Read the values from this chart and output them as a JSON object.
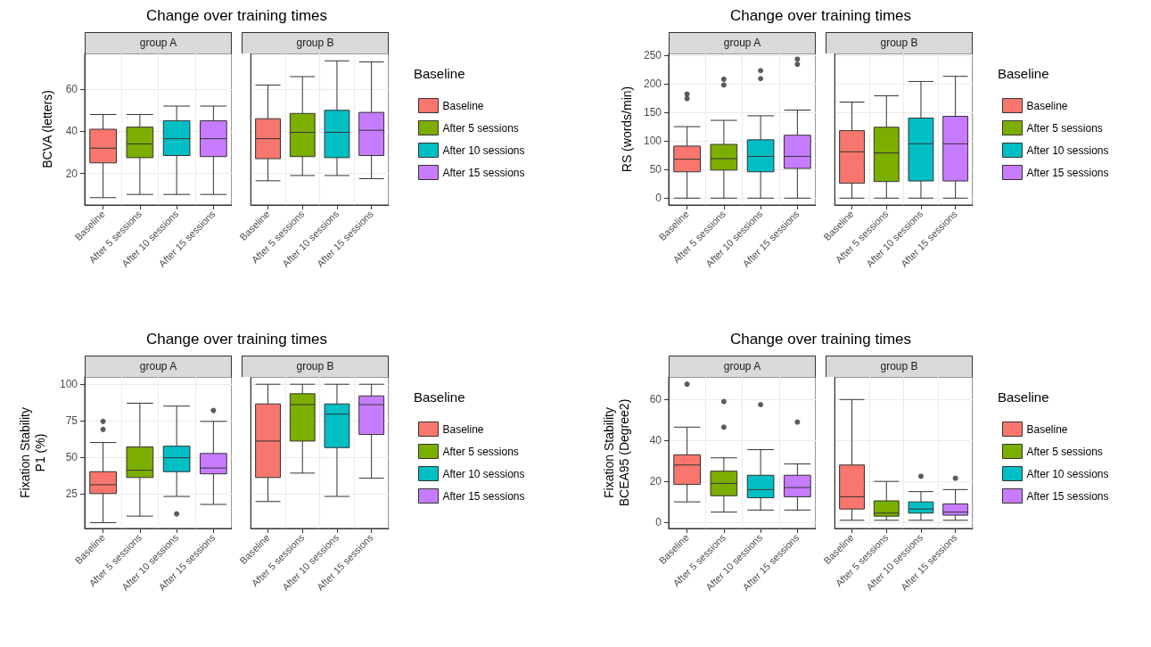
{
  "chart_data": [
    {
      "type": "box",
      "title": "Change over training times",
      "subtitle": "group A",
      "ylabel": "BCVA (letters)",
      "categories": [
        "Baseline",
        "After 5 sessions",
        "After 10 sessions",
        "After 15 sessions"
      ],
      "ylim": [
        5,
        77
      ],
      "yticks": [
        20,
        40,
        60
      ],
      "grid": true,
      "legend": false,
      "series": [
        {
          "color": "#f8766d",
          "boxes": [
            {
              "low": 8.5,
              "q1": 25,
              "median": 32,
              "q3": 41,
              "high": 48
            },
            null,
            null,
            null
          ]
        },
        {
          "color": "#7cae00",
          "boxes": [
            null,
            {
              "low": 10,
              "q1": 27.5,
              "median": 34,
              "q3": 42,
              "high": 48
            },
            null,
            null
          ]
        },
        {
          "color": "#00bfc4",
          "boxes": [
            null,
            null,
            {
              "low": 10,
              "q1": 28.5,
              "median": 36.5,
              "q3": 45,
              "high": 52
            },
            null
          ]
        },
        {
          "color": "#c77cff",
          "boxes": [
            null,
            null,
            null,
            {
              "low": 10,
              "q1": 28,
              "median": 36.5,
              "q3": 45,
              "high": 52
            }
          ]
        }
      ]
    },
    {
      "type": "box",
      "subtitle": "group B",
      "categories": [
        "Baseline",
        "After 5 sessions",
        "After 10 sessions",
        "After 15 sessions"
      ],
      "ylim": [
        5,
        77
      ],
      "yticks": [
        20,
        40,
        60
      ],
      "grid": true,
      "tick_labels": "x",
      "legend": "right",
      "legend_title": "Baseline",
      "series": [
        {
          "name": "Baseline",
          "color": "#f8766d",
          "boxes": [
            {
              "low": 16.5,
              "q1": 27,
              "median": 36.5,
              "q3": 46,
              "high": 62
            },
            null,
            null,
            null
          ]
        },
        {
          "name": "After 5 sessions",
          "color": "#7cae00",
          "boxes": [
            null,
            {
              "low": 19,
              "q1": 28,
              "median": 39.5,
              "q3": 48.5,
              "high": 66
            },
            null,
            null
          ]
        },
        {
          "name": "After 10 sessions",
          "color": "#00bfc4",
          "boxes": [
            null,
            null,
            {
              "low": 19,
              "q1": 27.5,
              "median": 39.5,
              "q3": 50,
              "high": 73.5
            },
            null
          ]
        },
        {
          "name": "After 15 sessions",
          "color": "#c77cff",
          "boxes": [
            null,
            null,
            null,
            {
              "low": 17.5,
              "q1": 28.5,
              "median": 40.5,
              "q3": 49,
              "high": 73
            }
          ]
        }
      ]
    },
    {
      "type": "box",
      "title": "Change over training times",
      "subtitle": "group A",
      "ylabel": "RS (words/min)",
      "categories": [
        "Baseline",
        "After 5 sessions",
        "After 10 sessions",
        "After 15 sessions"
      ],
      "ylim": [
        -12,
        253
      ],
      "yticks": [
        0,
        50,
        100,
        150,
        200,
        250
      ],
      "grid": true,
      "legend": false,
      "series": [
        {
          "color": "#f8766d",
          "boxes": [
            {
              "low": 0,
              "q1": 46,
              "median": 68,
              "q3": 91,
              "high": 125,
              "outliers": [
                174,
                182
              ]
            },
            null,
            null,
            null
          ]
        },
        {
          "color": "#7cae00",
          "boxes": [
            null,
            {
              "low": 0,
              "q1": 49,
              "median": 69,
              "q3": 94,
              "high": 136,
              "outliers": [
                198,
                208
              ]
            },
            null,
            null
          ]
        },
        {
          "color": "#00bfc4",
          "boxes": [
            null,
            null,
            {
              "low": 0,
              "q1": 46,
              "median": 73,
              "q3": 102,
              "high": 144,
              "outliers": [
                209,
                223
              ]
            },
            null
          ]
        },
        {
          "color": "#c77cff",
          "boxes": [
            null,
            null,
            null,
            {
              "low": 0,
              "q1": 52,
              "median": 73,
              "q3": 110,
              "high": 154,
              "outliers": [
                234,
                243
              ]
            }
          ]
        }
      ]
    },
    {
      "type": "box",
      "subtitle": "group B",
      "categories": [
        "Baseline",
        "After 5 sessions",
        "After 10 sessions",
        "After 15 sessions"
      ],
      "ylim": [
        -12,
        253
      ],
      "yticks": [
        0,
        50,
        100,
        150,
        200,
        250
      ],
      "grid": true,
      "tick_labels": "x",
      "legend": "right",
      "legend_title": "Baseline",
      "series": [
        {
          "name": "Baseline",
          "color": "#f8766d",
          "boxes": [
            {
              "low": 0,
              "q1": 26,
              "median": 81,
              "q3": 118,
              "high": 168
            },
            null,
            null,
            null
          ]
        },
        {
          "name": "After 5 sessions",
          "color": "#7cae00",
          "boxes": [
            null,
            {
              "low": 0,
              "q1": 29,
              "median": 79,
              "q3": 124,
              "high": 179
            },
            null,
            null
          ]
        },
        {
          "name": "After 10 sessions",
          "color": "#00bfc4",
          "boxes": [
            null,
            null,
            {
              "low": 0,
              "q1": 30,
              "median": 95,
              "q3": 140,
              "high": 204
            },
            null
          ]
        },
        {
          "name": "After 15 sessions",
          "color": "#c77cff",
          "boxes": [
            null,
            null,
            null,
            {
              "low": 0,
              "q1": 30,
              "median": 95,
              "q3": 143,
              "high": 213
            }
          ]
        }
      ]
    },
    {
      "type": "box",
      "title": "Change over training times",
      "subtitle": "group A",
      "ylabel": "Fixation Stability\nP1 (%)",
      "categories": [
        "Baseline",
        "After 5 sessions",
        "After 10 sessions",
        "After 15 sessions"
      ],
      "ylim": [
        1,
        105
      ],
      "yticks": [
        25,
        50,
        75,
        100
      ],
      "grid": true,
      "legend": false,
      "series": [
        {
          "color": "#f8766d",
          "boxes": [
            {
              "low": 5,
              "q1": 25,
              "median": 31,
              "q3": 40,
              "high": 60,
              "outliers": [
                69,
                74.5
              ]
            },
            null,
            null,
            null
          ]
        },
        {
          "color": "#7cae00",
          "boxes": [
            null,
            {
              "low": 9.5,
              "q1": 36,
              "median": 41,
              "q3": 57,
              "high": 87
            },
            null,
            null
          ]
        },
        {
          "color": "#00bfc4",
          "boxes": [
            null,
            null,
            {
              "low": 23,
              "q1": 40,
              "median": 49.5,
              "q3": 57.5,
              "high": 85,
              "outliers": [
                11
              ]
            },
            null
          ]
        },
        {
          "color": "#c77cff",
          "boxes": [
            null,
            null,
            null,
            {
              "low": 17.5,
              "q1": 38.5,
              "median": 42.5,
              "q3": 52.5,
              "high": 74.5,
              "outliers": [
                82
              ]
            }
          ]
        }
      ]
    },
    {
      "type": "box",
      "subtitle": "group B",
      "categories": [
        "Baseline",
        "After 5 sessions",
        "After 10 sessions",
        "After 15 sessions"
      ],
      "ylim": [
        1,
        105
      ],
      "yticks": [
        25,
        50,
        75,
        100
      ],
      "grid": true,
      "tick_labels": "x",
      "legend": "right",
      "legend_title": "Baseline",
      "series": [
        {
          "name": "Baseline",
          "color": "#f8766d",
          "boxes": [
            {
              "low": 19.5,
              "q1": 36,
              "median": 61,
              "q3": 86.5,
              "high": 100
            },
            null,
            null,
            null
          ]
        },
        {
          "name": "After 5 sessions",
          "color": "#7cae00",
          "boxes": [
            null,
            {
              "low": 39,
              "q1": 61,
              "median": 86,
              "q3": 93.5,
              "high": 100
            },
            null,
            null
          ]
        },
        {
          "name": "After 10 sessions",
          "color": "#00bfc4",
          "boxes": [
            null,
            null,
            {
              "low": 23,
              "q1": 56.5,
              "median": 79.5,
              "q3": 86.5,
              "high": 100
            },
            null
          ]
        },
        {
          "name": "After 15 sessions",
          "color": "#c77cff",
          "boxes": [
            null,
            null,
            null,
            {
              "low": 35.5,
              "q1": 65.5,
              "median": 86,
              "q3": 92,
              "high": 100
            }
          ]
        }
      ]
    },
    {
      "type": "box",
      "title": "Change over training times",
      "subtitle": "group A",
      "ylabel": "Fixation Stability\nBCEA95 (Degree2)",
      "categories": [
        "Baseline",
        "After 5 sessions",
        "After 10 sessions",
        "After 15 sessions"
      ],
      "ylim": [
        -3,
        71
      ],
      "yticks": [
        0,
        20,
        40,
        60
      ],
      "grid": true,
      "legend": false,
      "series": [
        {
          "color": "#f8766d",
          "boxes": [
            {
              "low": 10,
              "q1": 18.5,
              "median": 28,
              "q3": 33,
              "high": 46.5,
              "outliers": [
                67.5
              ]
            },
            null,
            null,
            null
          ]
        },
        {
          "color": "#7cae00",
          "boxes": [
            null,
            {
              "low": 5,
              "q1": 13,
              "median": 19,
              "q3": 25,
              "high": 31.5,
              "outliers": [
                46.5,
                59
              ]
            },
            null,
            null
          ]
        },
        {
          "color": "#00bfc4",
          "boxes": [
            null,
            null,
            {
              "low": 6,
              "q1": 12,
              "median": 16,
              "q3": 23,
              "high": 35.5,
              "outliers": [
                57.5
              ]
            },
            null
          ]
        },
        {
          "color": "#c77cff",
          "boxes": [
            null,
            null,
            null,
            {
              "low": 6,
              "q1": 12.5,
              "median": 17,
              "q3": 23,
              "high": 28.5,
              "outliers": [
                49
              ]
            }
          ]
        }
      ]
    },
    {
      "type": "box",
      "subtitle": "group B",
      "categories": [
        "Baseline",
        "After 5 sessions",
        "After 10 sessions",
        "After 15 sessions"
      ],
      "ylim": [
        -3,
        71
      ],
      "yticks": [
        0,
        20,
        40,
        60
      ],
      "grid": true,
      "tick_labels": "x",
      "legend": "right",
      "legend_title": "Baseline",
      "series": [
        {
          "name": "Baseline",
          "color": "#f8766d",
          "boxes": [
            {
              "low": 1,
              "q1": 6.5,
              "median": 12.5,
              "q3": 28,
              "high": 60
            },
            null,
            null,
            null
          ]
        },
        {
          "name": "After 5 sessions",
          "color": "#7cae00",
          "boxes": [
            null,
            {
              "low": 1,
              "q1": 3,
              "median": 4.5,
              "q3": 10.5,
              "high": 20
            },
            null,
            null
          ]
        },
        {
          "name": "After 10 sessions",
          "color": "#00bfc4",
          "boxes": [
            null,
            null,
            {
              "low": 1,
              "q1": 4.5,
              "median": 6.5,
              "q3": 10,
              "high": 15,
              "outliers": [
                22.5
              ]
            },
            null
          ]
        },
        {
          "name": "After 15 sessions",
          "color": "#c77cff",
          "boxes": [
            null,
            null,
            null,
            {
              "low": 1,
              "q1": 3.5,
              "median": 5,
              "q3": 9,
              "high": 16,
              "outliers": [
                21.5
              ]
            }
          ]
        }
      ]
    }
  ]
}
